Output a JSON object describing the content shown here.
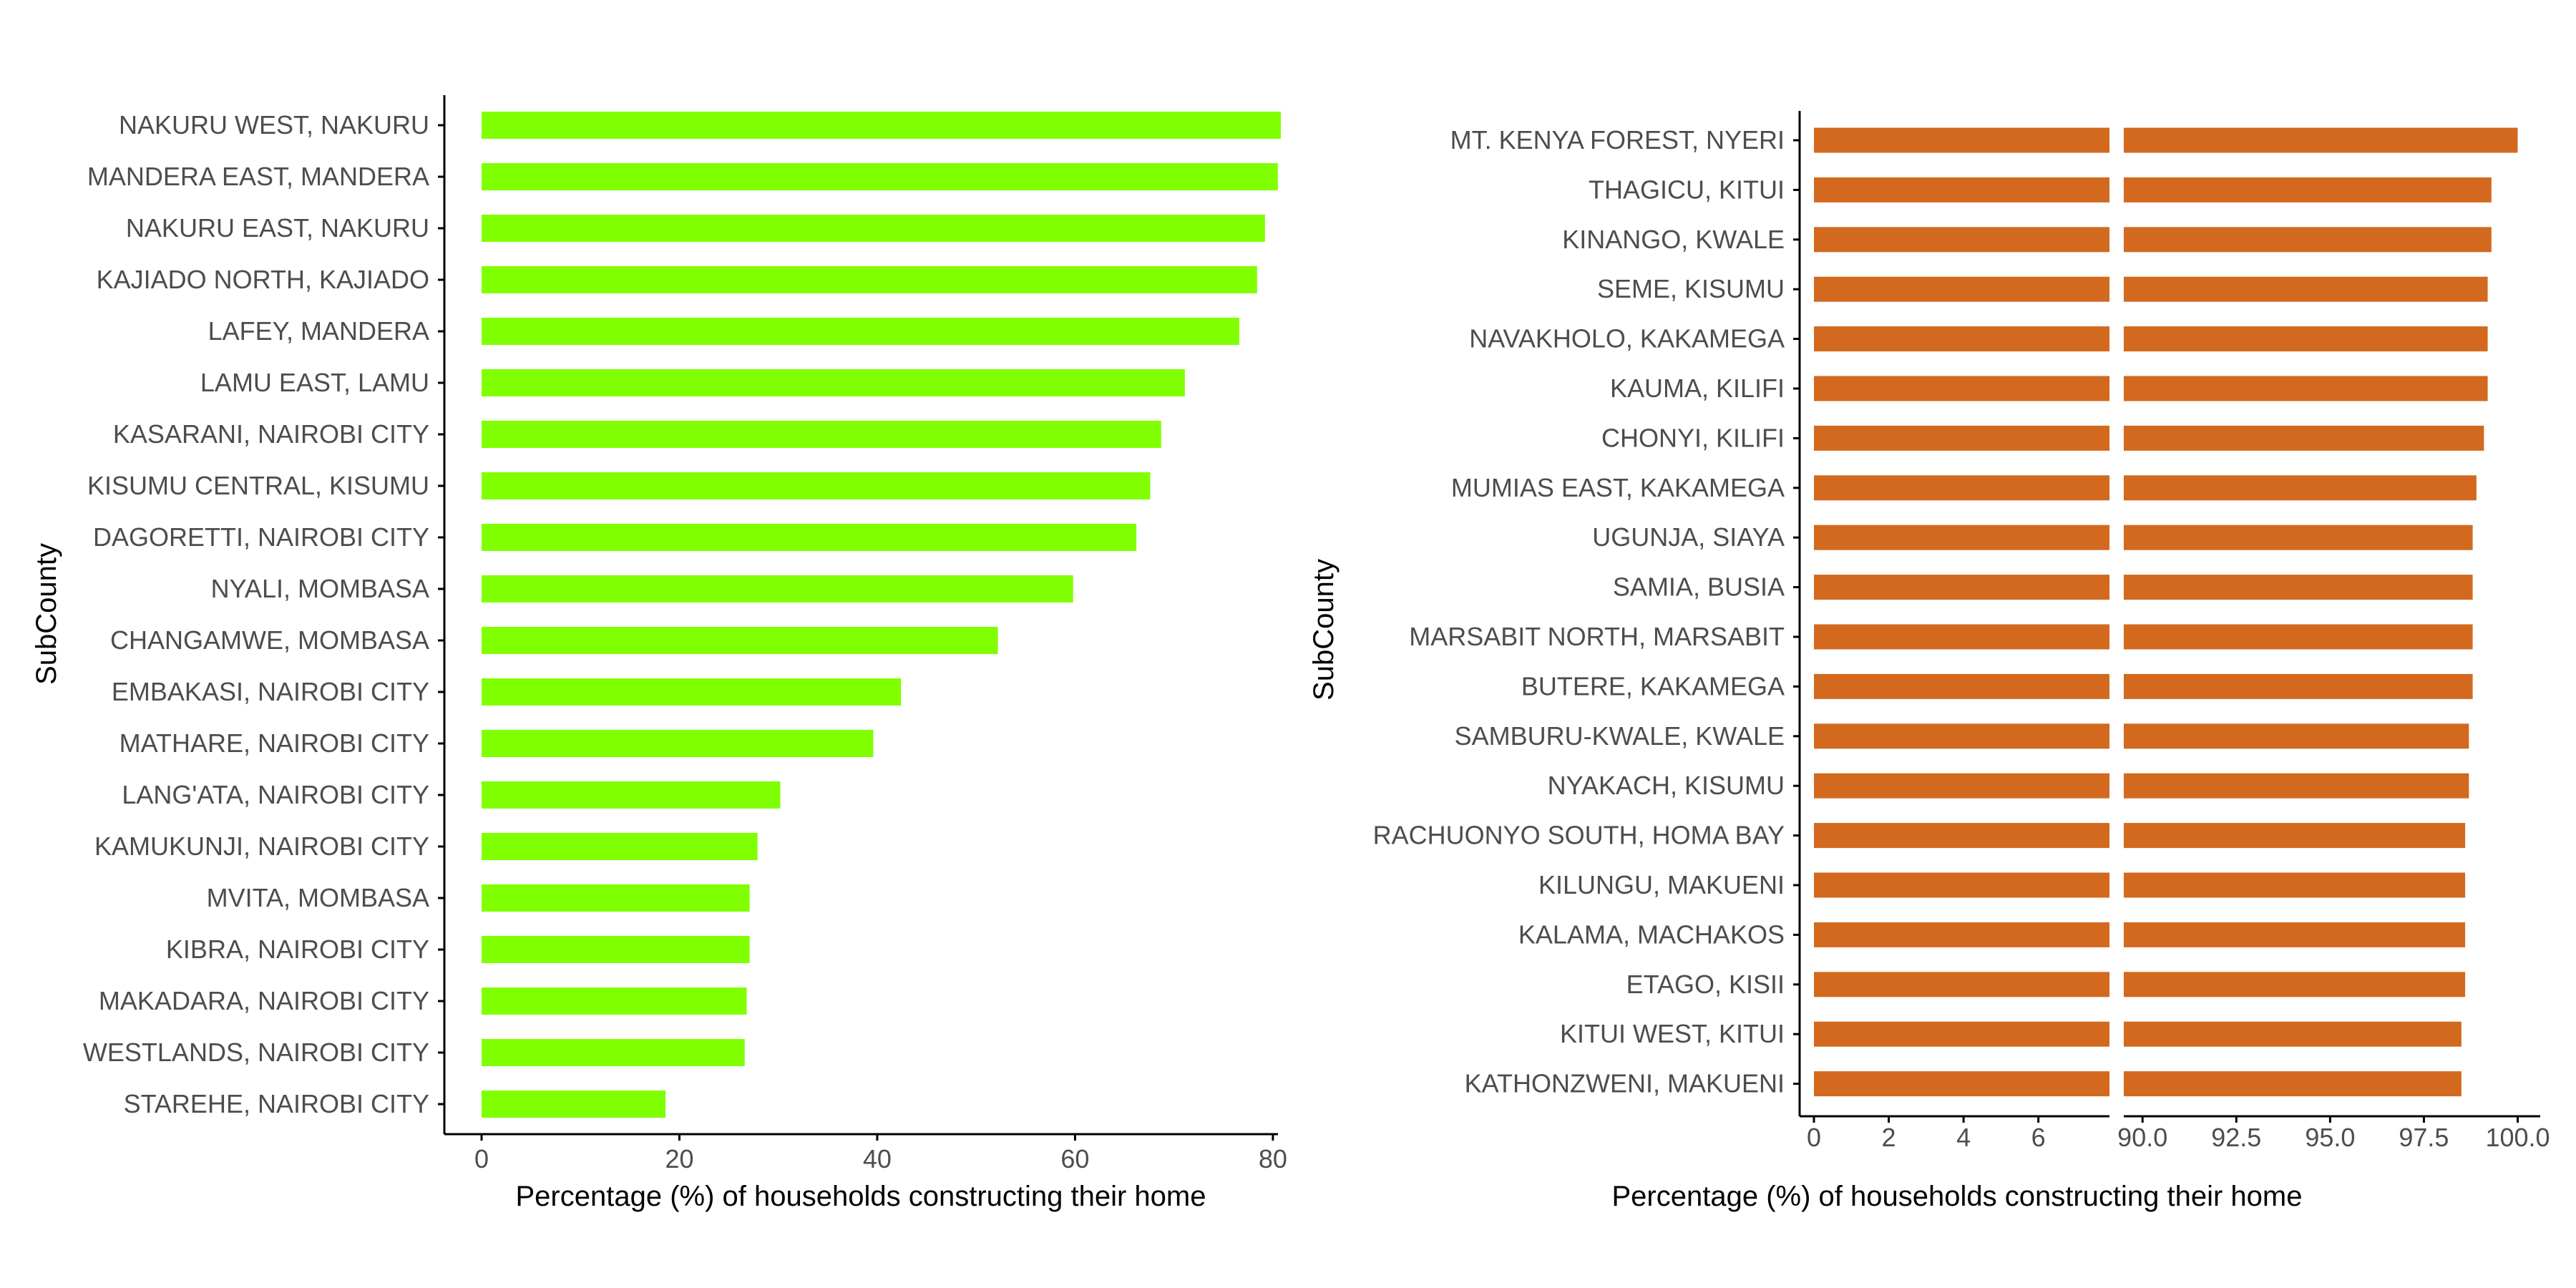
{
  "colors": {
    "left_bar": "#7fff00",
    "right_bar": "#d2691e",
    "axis": "#000000",
    "tick_text": "#4d4d4d"
  },
  "chart_data": [
    {
      "type": "bar",
      "orientation": "horizontal",
      "xlabel": "Percentage (%) of households constructing their home",
      "ylabel": "SubCounty",
      "xlim": [
        0,
        85
      ],
      "xticks": [
        0,
        20,
        40,
        60,
        80
      ],
      "grid": false,
      "categories": [
        "NAKURU WEST, NAKURU",
        "MANDERA EAST, MANDERA",
        "NAKURU EAST, NAKURU",
        "KAJIADO NORTH, KAJIADO",
        "LAFEY, MANDERA",
        "LAMU EAST, LAMU",
        "KASARANI, NAIROBI CITY",
        "KISUMU CENTRAL, KISUMU",
        "DAGORETTI, NAIROBI CITY",
        "NYALI, MOMBASA",
        "CHANGAMWE, MOMBASA",
        "EMBAKASI, NAIROBI CITY",
        "MATHARE, NAIROBI CITY",
        "LANG'ATA, NAIROBI CITY",
        "KAMUKUNJI, NAIROBI CITY",
        "MVITA, MOMBASA",
        "KIBRA, NAIROBI CITY",
        "MAKADARA, NAIROBI CITY",
        "WESTLANDS, NAIROBI CITY",
        "STAREHE, NAIROBI CITY"
      ],
      "values": [
        80.8,
        80.5,
        79.2,
        78.4,
        76.6,
        71.1,
        68.7,
        67.6,
        66.2,
        59.8,
        52.2,
        42.4,
        39.6,
        30.2,
        27.9,
        27.1,
        27.1,
        26.8,
        26.6,
        18.6
      ]
    },
    {
      "type": "bar",
      "orientation": "horizontal",
      "axis_break": true,
      "xlabel": "Percentage (%) of households constructing their home",
      "ylabel": "SubCounty",
      "segments": [
        {
          "range": [
            0,
            7.9
          ],
          "ticks": [
            0,
            2,
            4,
            6
          ],
          "tick_labels": [
            "0",
            "2",
            "4",
            "6"
          ]
        },
        {
          "range": [
            89.5,
            100.2
          ],
          "ticks": [
            90,
            92.5,
            95,
            97.5,
            100
          ],
          "tick_labels": [
            "90.0",
            "92.5",
            "95.0",
            "97.5",
            "100.0"
          ]
        }
      ],
      "grid": false,
      "categories": [
        "MT. KENYA FOREST, NYERI",
        "THAGICU, KITUI",
        "KINANGO, KWALE",
        "SEME, KISUMU",
        "NAVAKHOLO, KAKAMEGA",
        "KAUMA, KILIFI",
        "CHONYI, KILIFI",
        "MUMIAS EAST, KAKAMEGA",
        "UGUNJA, SIAYA",
        "SAMIA, BUSIA",
        "MARSABIT NORTH, MARSABIT",
        "BUTERE, KAKAMEGA",
        "SAMBURU-KWALE, KWALE",
        "NYAKACH, KISUMU",
        "RACHUONYO SOUTH, HOMA BAY",
        "KILUNGU, MAKUENI",
        "KALAMA, MACHAKOS",
        "ETAGO, KISII",
        "KITUI WEST, KITUI",
        "KATHONZWENI, MAKUENI"
      ],
      "values": [
        100.0,
        99.3,
        99.3,
        99.2,
        99.2,
        99.2,
        99.1,
        98.9,
        98.8,
        98.8,
        98.8,
        98.8,
        98.7,
        98.7,
        98.6,
        98.6,
        98.6,
        98.6,
        98.5,
        98.5
      ]
    }
  ]
}
